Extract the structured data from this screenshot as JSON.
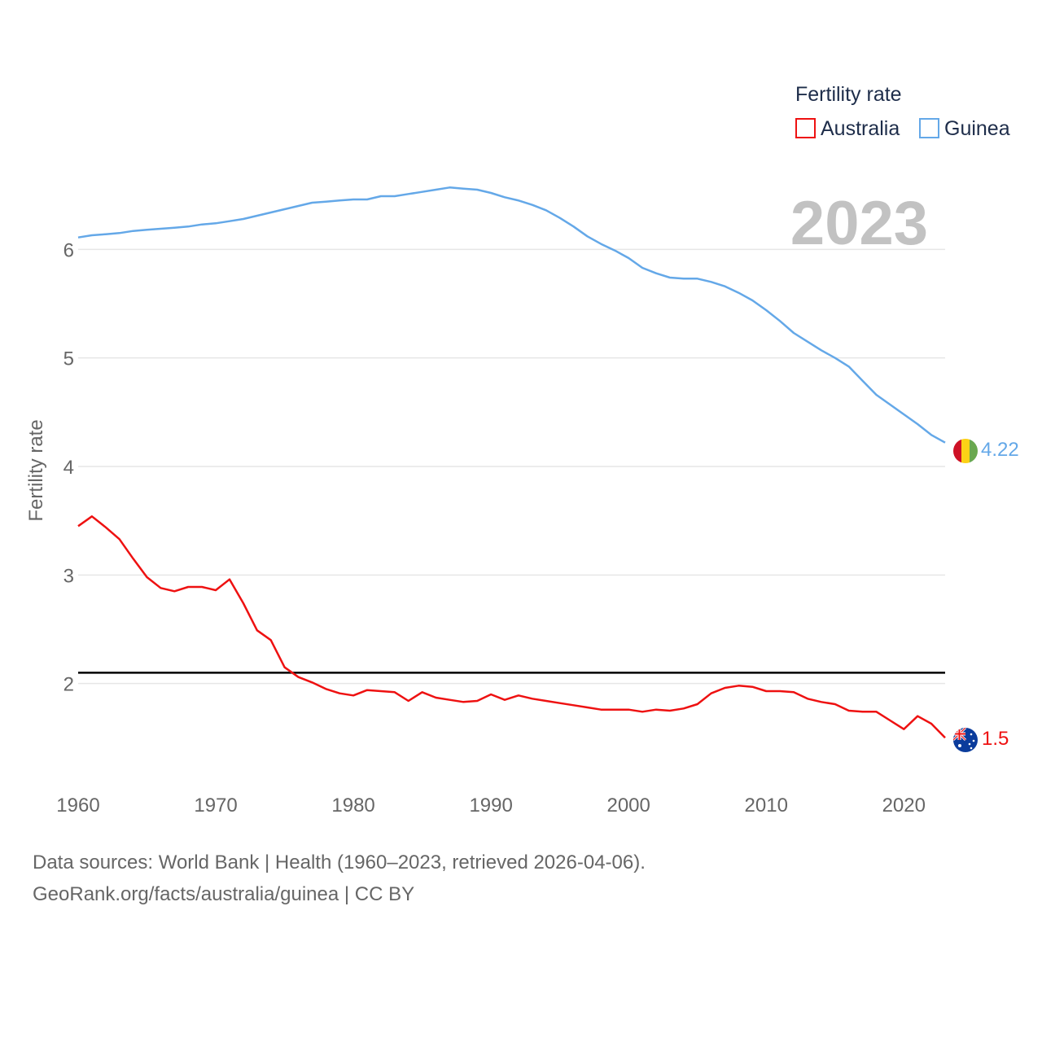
{
  "chart_data": {
    "type": "line",
    "ylabel": "Fertility rate",
    "year_label": "2023",
    "legend": {
      "title": "Fertility rate",
      "placement": "top-right"
    },
    "xlim": [
      1960,
      2023
    ],
    "ylim": [
      1.0,
      6.85
    ],
    "x_ticks": [
      1960,
      1970,
      1980,
      1990,
      2000,
      2010,
      2020
    ],
    "y_ticks": [
      2,
      3,
      4,
      5,
      6
    ],
    "reference_line": 2.1,
    "x": [
      1960,
      1961,
      1962,
      1963,
      1964,
      1965,
      1966,
      1967,
      1968,
      1969,
      1970,
      1971,
      1972,
      1973,
      1974,
      1975,
      1976,
      1977,
      1978,
      1979,
      1980,
      1981,
      1982,
      1983,
      1984,
      1985,
      1986,
      1987,
      1988,
      1989,
      1990,
      1991,
      1992,
      1993,
      1994,
      1995,
      1996,
      1997,
      1998,
      1999,
      2000,
      2001,
      2002,
      2003,
      2004,
      2005,
      2006,
      2007,
      2008,
      2009,
      2010,
      2011,
      2012,
      2013,
      2014,
      2015,
      2016,
      2017,
      2018,
      2019,
      2020,
      2021,
      2022,
      2023
    ],
    "series": [
      {
        "name": "Australia",
        "color": "#ee1111",
        "end_label": "1.5",
        "flag_icon": "australia-flag-icon",
        "values": [
          3.45,
          3.54,
          3.44,
          3.33,
          3.15,
          2.98,
          2.88,
          2.85,
          2.89,
          2.89,
          2.86,
          2.96,
          2.74,
          2.49,
          2.4,
          2.15,
          2.06,
          2.01,
          1.95,
          1.91,
          1.89,
          1.94,
          1.93,
          1.92,
          1.84,
          1.92,
          1.87,
          1.85,
          1.83,
          1.84,
          1.9,
          1.85,
          1.89,
          1.86,
          1.84,
          1.82,
          1.8,
          1.78,
          1.76,
          1.76,
          1.76,
          1.74,
          1.76,
          1.75,
          1.77,
          1.81,
          1.91,
          1.96,
          1.98,
          1.97,
          1.93,
          1.93,
          1.92,
          1.86,
          1.83,
          1.81,
          1.75,
          1.74,
          1.74,
          1.66,
          1.58,
          1.7,
          1.63,
          1.5
        ]
      },
      {
        "name": "Guinea",
        "color": "#64a8e8",
        "end_label": "4.22",
        "flag_icon": "guinea-flag-icon",
        "values": [
          6.11,
          6.13,
          6.14,
          6.15,
          6.17,
          6.18,
          6.19,
          6.2,
          6.21,
          6.23,
          6.24,
          6.26,
          6.28,
          6.31,
          6.34,
          6.37,
          6.4,
          6.43,
          6.44,
          6.45,
          6.46,
          6.46,
          6.49,
          6.49,
          6.51,
          6.53,
          6.55,
          6.57,
          6.56,
          6.55,
          6.52,
          6.48,
          6.45,
          6.41,
          6.36,
          6.29,
          6.21,
          6.12,
          6.05,
          5.99,
          5.92,
          5.83,
          5.78,
          5.74,
          5.73,
          5.73,
          5.7,
          5.66,
          5.6,
          5.53,
          5.44,
          5.34,
          5.23,
          5.15,
          5.07,
          5.0,
          4.92,
          4.79,
          4.66,
          4.57,
          4.48,
          4.39,
          4.29,
          4.22
        ]
      }
    ]
  },
  "footer": {
    "source_line": "Data sources: World Bank | Health (1960–2023, retrieved 2026-04-06).",
    "credit_line": "GeoRank.org/facts/australia/guinea | CC BY"
  }
}
